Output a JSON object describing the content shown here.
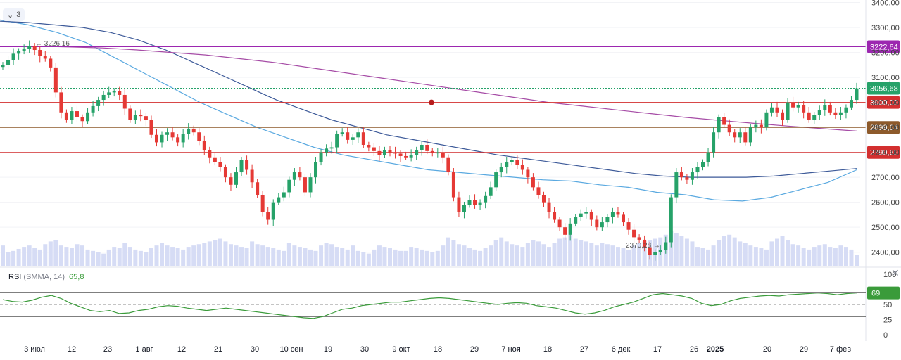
{
  "toolbar": {
    "collapse_count": "3"
  },
  "price_axis": {
    "ticks": [
      "3400,00",
      "3300,00",
      "3200,00",
      "3100,00",
      "3000,00",
      "2900,00",
      "2800,00",
      "2700,00",
      "2600,00",
      "2500,00",
      "2400,00"
    ],
    "tick_values": [
      3400,
      3300,
      3200,
      3100,
      3000,
      2900,
      2800,
      2700,
      2600,
      2500,
      2400
    ]
  },
  "levels": [
    {
      "value": 3222.64,
      "label": "3222,64",
      "color": "#9c27b0",
      "style": "solid"
    },
    {
      "value": 3056.68,
      "label": "3056,68",
      "color": "#26a269",
      "style": "dotted"
    },
    {
      "value": 3000.09,
      "label": "3000,09",
      "color": "#d32f2f",
      "style": "solid"
    },
    {
      "value": 2899.64,
      "label": "2899,64",
      "color": "#8d5a2b",
      "style": "solid"
    },
    {
      "value": 2799.69,
      "label": "2799,69",
      "color": "#d32f2f",
      "style": "solid"
    }
  ],
  "annotations": {
    "high_label": "← 3226,16",
    "low_label": "2370,28 →"
  },
  "rsi": {
    "title": "RSI",
    "params": "(SMMA, 14)",
    "value": "65,8",
    "badge": "69",
    "axis_ticks": [
      "100",
      "75",
      "50",
      "25",
      "0"
    ],
    "axis_values": [
      100,
      75,
      50,
      25,
      0
    ]
  },
  "time_axis": {
    "labels": [
      "3 июл",
      "12",
      "23",
      "1 авг",
      "12",
      "21",
      "30",
      "10 сен",
      "19",
      "30",
      "9 окт",
      "18",
      "29",
      "7 ноя",
      "18",
      "27",
      "6 дек",
      "17",
      "26",
      "2025",
      "20",
      "29",
      "7 фев"
    ],
    "bold": "2025"
  },
  "colors": {
    "up": "#26a269",
    "down": "#e53935",
    "volume": "#d6dcf5",
    "ma_fast": "#5aa9e0",
    "ma_mid": "#3d5a99",
    "ma_slow": "#a64ca6",
    "rsi_line": "#3a9b3a"
  },
  "chart_data": {
    "type": "candlestick",
    "ylim": [
      2340,
      3410
    ],
    "closes": [
      3150,
      3170,
      3195,
      3205,
      3215,
      3226,
      3210,
      3185,
      3175,
      3140,
      3040,
      2960,
      2930,
      2965,
      2940,
      2925,
      2960,
      2985,
      3010,
      3030,
      3040,
      3045,
      3030,
      2975,
      2930,
      2950,
      2945,
      2930,
      2870,
      2840,
      2870,
      2880,
      2860,
      2840,
      2875,
      2895,
      2880,
      2845,
      2810,
      2780,
      2760,
      2740,
      2700,
      2670,
      2720,
      2770,
      2730,
      2680,
      2630,
      2560,
      2530,
      2600,
      2620,
      2640,
      2690,
      2720,
      2700,
      2640,
      2700,
      2760,
      2800,
      2815,
      2820,
      2875,
      2880,
      2850,
      2860,
      2880,
      2830,
      2820,
      2805,
      2790,
      2810,
      2800,
      2795,
      2785,
      2780,
      2790,
      2810,
      2830,
      2805,
      2800,
      2800,
      2780,
      2720,
      2620,
      2560,
      2590,
      2610,
      2590,
      2600,
      2625,
      2660,
      2720,
      2740,
      2760,
      2770,
      2750,
      2730,
      2700,
      2660,
      2630,
      2600,
      2560,
      2530,
      2500,
      2470,
      2515,
      2540,
      2555,
      2560,
      2530,
      2500,
      2520,
      2540,
      2560,
      2550,
      2520,
      2490,
      2460,
      2450,
      2420,
      2390,
      2400,
      2410,
      2440,
      2620,
      2720,
      2700,
      2690,
      2720,
      2740,
      2760,
      2800,
      2880,
      2940,
      2910,
      2880,
      2860,
      2880,
      2840,
      2900,
      2910,
      2900,
      2960,
      2980,
      2960,
      2930,
      3000,
      2980,
      2990,
      2960,
      2930,
      2950,
      2970,
      2990,
      2960,
      2950,
      2960,
      2980,
      3010,
      3056
    ],
    "volumes": [
      30,
      20,
      22,
      25,
      28,
      30,
      26,
      24,
      32,
      36,
      38,
      30,
      28,
      26,
      32,
      30,
      24,
      22,
      20,
      18,
      24,
      28,
      26,
      34,
      28,
      24,
      22,
      20,
      26,
      30,
      34,
      30,
      28,
      26,
      24,
      28,
      30,
      32,
      34,
      36,
      38,
      40,
      36,
      32,
      30,
      28,
      26,
      36,
      32,
      30,
      28,
      26,
      24,
      22,
      34,
      30,
      28,
      26,
      24,
      22,
      30,
      34,
      32,
      28,
      26,
      24,
      30,
      22,
      20,
      18,
      24,
      30,
      28,
      26,
      24,
      22,
      22,
      28,
      26,
      24,
      22,
      20,
      22,
      30,
      42,
      38,
      32,
      30,
      26,
      24,
      22,
      26,
      30,
      38,
      42,
      36,
      32,
      30,
      28,
      34,
      38,
      36,
      32,
      28,
      34,
      40,
      42,
      46,
      40,
      38,
      36,
      34,
      30,
      34,
      32,
      30,
      28,
      26,
      24,
      30,
      34,
      36,
      38,
      40,
      42,
      46,
      52,
      48,
      44,
      40,
      36,
      28,
      26,
      24,
      30,
      38,
      44,
      46,
      42,
      36,
      34,
      30,
      28,
      26,
      24,
      36,
      40,
      44,
      38,
      32,
      30,
      26,
      24,
      28,
      30,
      32,
      28,
      26,
      30,
      28,
      24,
      16
    ],
    "ma_fast": [
      3330,
      3310,
      3280,
      3240,
      3180,
      3120,
      3060,
      3000,
      2950,
      2900,
      2860,
      2820,
      2790,
      2770,
      2750,
      2730,
      2720,
      2710,
      2700,
      2690,
      2685,
      2670,
      2660,
      2640,
      2630,
      2610,
      2605,
      2620,
      2650,
      2680,
      2730
    ],
    "ma_mid": [
      3325,
      3320,
      3310,
      3300,
      3280,
      3250,
      3210,
      3160,
      3110,
      3060,
      3010,
      2970,
      2930,
      2900,
      2870,
      2850,
      2830,
      2810,
      2790,
      2775,
      2760,
      2745,
      2730,
      2715,
      2705,
      2700,
      2700,
      2700,
      2705,
      2715,
      2725,
      2735
    ],
    "ma_slow": [
      3225,
      3225,
      3222,
      3218,
      3210,
      3200,
      3190,
      3175,
      3160,
      3140,
      3120,
      3100,
      3080,
      3060,
      3040,
      3020,
      3000,
      2985,
      2970,
      2955,
      2940,
      2928,
      2916,
      2905,
      2895,
      2885
    ],
    "rsi": [
      58,
      55,
      54,
      57,
      62,
      65,
      60,
      52,
      46,
      40,
      38,
      40,
      35,
      36,
      40,
      42,
      46,
      48,
      47,
      44,
      42,
      40,
      42,
      44,
      42,
      40,
      38,
      36,
      34,
      32,
      30,
      28,
      27,
      30,
      36,
      42,
      44,
      48,
      50,
      52,
      54,
      54,
      56,
      58,
      60,
      61,
      60,
      58,
      56,
      54,
      52,
      50,
      52,
      53,
      52,
      48,
      46,
      44,
      40,
      36,
      34,
      36,
      40,
      46,
      50,
      54,
      60,
      66,
      68,
      66,
      64,
      60,
      52,
      48,
      50,
      56,
      60,
      62,
      64,
      65,
      64,
      66,
      67,
      68,
      69,
      68,
      66,
      68,
      69
    ]
  }
}
